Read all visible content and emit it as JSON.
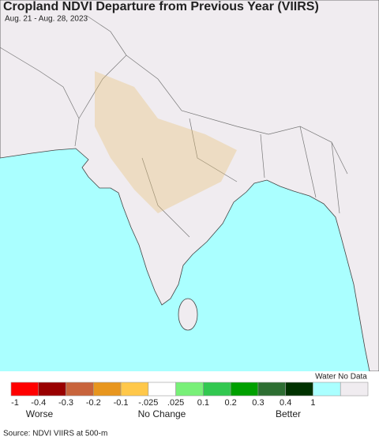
{
  "header": {
    "title": "Cropland NDVI Departure from Previous Year (VIIRS)",
    "date": "Aug. 21 - Aug. 28, 2023"
  },
  "legend": {
    "colors": [
      "#ff0000",
      "#990000",
      "#c8643c",
      "#e8961e",
      "#ffc84a",
      "#ffffff",
      "#78f078",
      "#32c850",
      "#00a000",
      "#2d6e32",
      "#003200",
      "#aaffff",
      "#f0ecf0"
    ],
    "tick_labels": [
      "-1",
      "-0.4",
      "-0.3",
      "-0.2",
      "-0.1",
      "-.025",
      ".025",
      "0.1",
      "0.2",
      "0.3",
      "0.4",
      "1"
    ],
    "special_label": "Water No Data",
    "scale_labels": [
      "Worse",
      "No Change",
      "Better"
    ]
  },
  "footer": {
    "source": "Source: NDVI VIIRS at 500-m"
  }
}
